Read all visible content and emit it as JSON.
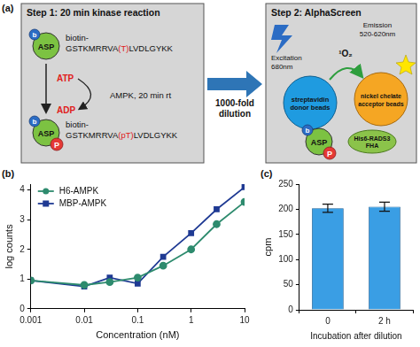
{
  "panel_labels": [
    "(a)",
    "(b)",
    "(c)"
  ],
  "diagram": {
    "step1": {
      "title": "Step 1: 20 min kinase reaction",
      "molecule": "ASP",
      "biotin_mark": "b",
      "substrate": {
        "prefix": "biotin-",
        "sequence": "GSTKMRRVA(T)LVDLGYKK"
      },
      "cofactor_in": "ATP",
      "cofactor_out": "ADP",
      "enzyme_label": "AMPK, 20 min rt",
      "product": {
        "prefix": "biotin-",
        "sequence": "GSTKMRRVA(pT)LVDLGYKK"
      },
      "phospho_mark": "P"
    },
    "transfer": "1000-fold dilution",
    "step2": {
      "title": "Step 2: AlphaScreen",
      "excitation": "Excitation 680nm",
      "singlet_oxygen": "¹O₂",
      "emission": "Emission 520-620nm",
      "donor": "streptavidin donor beads",
      "acceptor": "nickel chelate acceptor beads",
      "binder": "His6-RADS3 FHA",
      "molecule": "ASP",
      "biotin_mark": "b",
      "phospho_mark": "P"
    }
  },
  "chart_data": [
    {
      "type": "line",
      "x": [
        0.001,
        0.01,
        0.03,
        0.1,
        0.3,
        1,
        3,
        10
      ],
      "series": [
        {
          "name": "H6-AMPK",
          "color": "#2e8b6e",
          "marker": "circle",
          "values": [
            0.95,
            0.8,
            0.9,
            1.05,
            1.45,
            2.0,
            2.85,
            3.6
          ]
        },
        {
          "name": "MBP-AMPK",
          "color": "#1f3a93",
          "marker": "square",
          "values": [
            0.95,
            0.75,
            1.05,
            0.85,
            1.75,
            2.55,
            3.35,
            4.1
          ]
        }
      ],
      "x_label": "Concentration (nM)",
      "y_label": "log counts",
      "log": "x",
      "xlim": [
        0.001,
        10
      ],
      "xticks": [
        0.001,
        0.01,
        0.1,
        1,
        10
      ],
      "ylim": [
        0,
        4.2
      ],
      "yticks": [
        0,
        1,
        2,
        3,
        4
      ],
      "legend": "upper left",
      "grid": false
    },
    {
      "type": "bar",
      "categories": [
        "0",
        "2 h"
      ],
      "values": [
        202,
        205
      ],
      "errors": [
        8,
        9
      ],
      "color": "#3a9ee4",
      "x_label": "Incubation after dilution",
      "y_label": "cpm",
      "ylim": [
        0,
        250
      ],
      "yticks": [
        0,
        50,
        100,
        150,
        200,
        250
      ],
      "grid": false
    }
  ]
}
